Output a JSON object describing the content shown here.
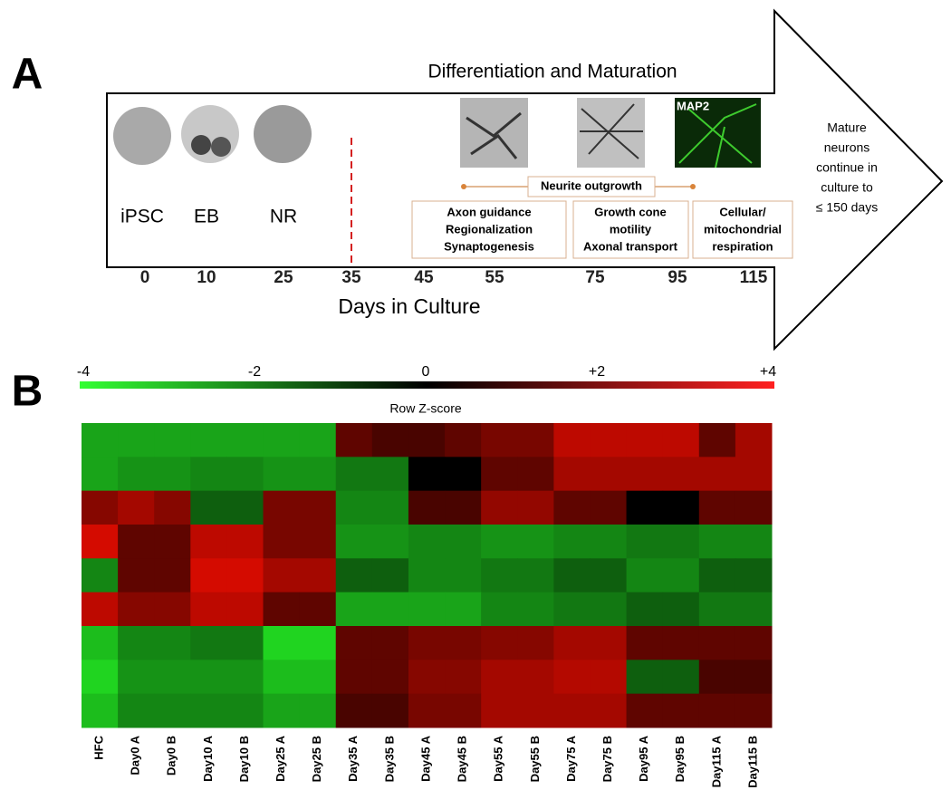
{
  "panel_a": {
    "label": "A",
    "title": "Differentiation and Maturation",
    "stages": [
      "iPSC",
      "EB",
      "NR"
    ],
    "micrograph_label": "MAP2",
    "neurite": "Neurite outgrowth",
    "boxes": [
      [
        "Axon guidance",
        "Regionalization",
        "Synaptogenesis"
      ],
      [
        "Growth cone",
        "motility",
        "Axonal transport"
      ],
      [
        "Cellular/",
        "mitochondrial",
        "respiration"
      ]
    ],
    "note": [
      "Mature",
      "neurons",
      "continue in",
      "culture to",
      "≤ 150 days"
    ],
    "days": [
      0,
      10,
      25,
      35,
      45,
      55,
      75,
      95,
      115
    ],
    "xlabel": "Days in Culture"
  },
  "panel_b": {
    "label": "B",
    "colorbar": {
      "label": "Row Z-score",
      "range": [
        -4,
        4
      ],
      "ticks": [
        -4,
        -2,
        0,
        {
          "value": 2,
          "label": "+2"
        },
        {
          "value": 4,
          "label": "+4"
        }
      ]
    },
    "columns": [
      "HFC",
      "Day0 A",
      "Day0 B",
      "Day10 A",
      "Day10 B",
      "Day25 A",
      "Day25 B",
      "Day35 A",
      "Day35 B",
      "Day45 A",
      "Day45 B",
      "Day55 A",
      "Day55 B",
      "Day75 A",
      "Day75 B",
      "Day95 A",
      "Day95 B",
      "Day115 A",
      "Day115 B"
    ],
    "values": [
      [
        -1.5,
        -1.5,
        -1.5,
        -1.5,
        -1.5,
        -1.5,
        -1.5,
        0.5,
        0.3,
        0.3,
        0.5,
        0.8,
        0.8,
        2,
        2,
        2,
        2,
        0.5,
        1.5
      ],
      [
        -1.5,
        -1.2,
        -1.2,
        -1,
        -1,
        -1.2,
        -1.2,
        -0.8,
        -0.8,
        0,
        0,
        0.5,
        0.5,
        1.5,
        1.5,
        1.5,
        1.5,
        1.5,
        1.5
      ],
      [
        1,
        1.5,
        1,
        -0.5,
        -0.5,
        0.8,
        0.8,
        -1,
        -1,
        0.3,
        0.3,
        1.2,
        1.2,
        0.5,
        0.5,
        0,
        0,
        0.5,
        0.5
      ],
      [
        2.5,
        0.5,
        0.5,
        2,
        2,
        0.8,
        0.8,
        -1.2,
        -1.2,
        -1,
        -1,
        -1.2,
        -1.2,
        -1,
        -1,
        -0.8,
        -0.8,
        -1,
        -1
      ],
      [
        -1,
        0.5,
        0.5,
        2.5,
        2.5,
        1.5,
        1.5,
        -0.5,
        -0.5,
        -1,
        -1,
        -0.8,
        -0.8,
        -0.5,
        -0.5,
        -1,
        -1,
        -0.5,
        -0.5
      ],
      [
        2,
        1,
        1,
        2,
        2,
        0.5,
        0.5,
        -1.5,
        -1.5,
        -1.5,
        -1.5,
        -1,
        -1,
        -0.8,
        -0.8,
        -0.5,
        -0.5,
        -0.8,
        -0.8
      ],
      [
        -2,
        -1,
        -1,
        -0.8,
        -0.8,
        -2.5,
        -2.5,
        0.5,
        0.5,
        0.8,
        0.8,
        1,
        1,
        1.5,
        1.5,
        0.5,
        0.5,
        0.5,
        0.5
      ],
      [
        -2.5,
        -1.2,
        -1.2,
        -1.2,
        -1.2,
        -2,
        -2,
        0.5,
        0.5,
        1,
        1,
        1.5,
        1.5,
        1.8,
        1.8,
        -0.5,
        -0.5,
        0.3,
        0.3
      ],
      [
        -2,
        -1,
        -1,
        -1,
        -1,
        -1.5,
        -1.5,
        0.3,
        0.3,
        0.8,
        0.8,
        1.5,
        1.5,
        1.5,
        1.5,
        0.5,
        0.5,
        0.5,
        0.5
      ]
    ]
  }
}
